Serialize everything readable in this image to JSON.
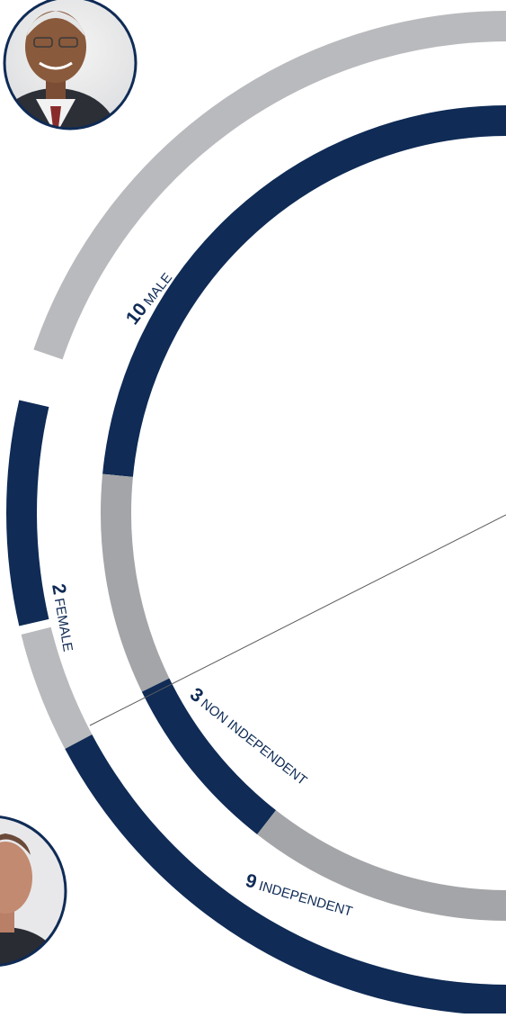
{
  "colors": {
    "navy": "#0f2b56",
    "gray_light": "#b9babd",
    "gray_mid": "#a4a5a8",
    "leader": "#5b5b5b"
  },
  "chart_data": {
    "type": "donut",
    "rings": [
      {
        "segments": [
          {
            "value": 10,
            "label": "MALE"
          },
          {
            "value": 2,
            "label": "FEMALE"
          }
        ]
      },
      {
        "segments": [
          {
            "value": 9,
            "label": "INDEPENDENT"
          },
          {
            "value": 3,
            "label": "NON INDEPENDENT"
          }
        ]
      }
    ]
  },
  "photos": [
    {
      "name": "portrait-top",
      "icon": "person-photo"
    },
    {
      "name": "portrait-bottom",
      "icon": "person-photo"
    }
  ]
}
